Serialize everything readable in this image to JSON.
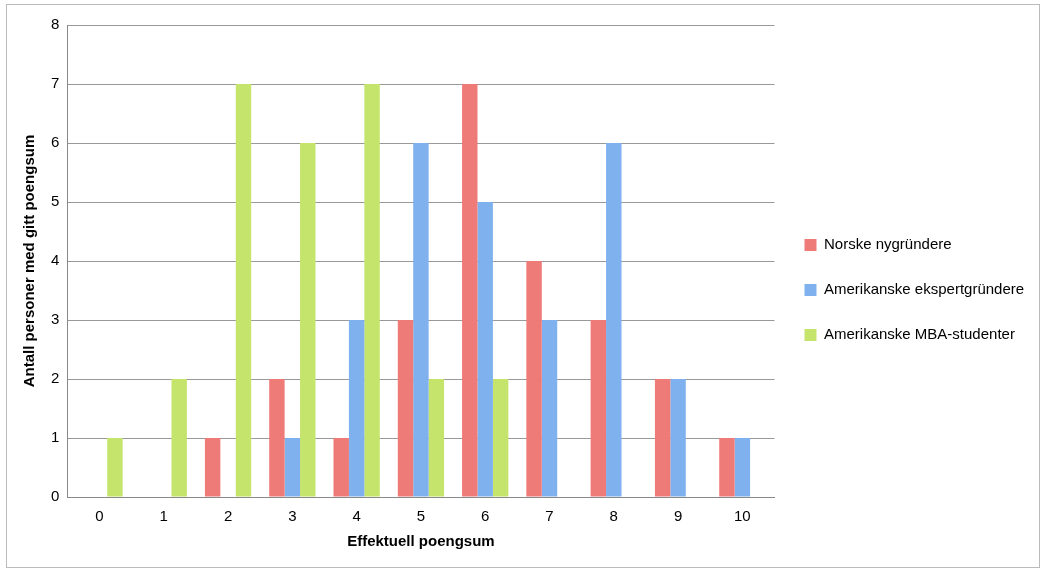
{
  "chart_data": {
    "type": "bar",
    "xlabel": "Effektuell poengsum",
    "ylabel": "Antall personer med gitt poengsum",
    "categories": [
      "0",
      "1",
      "2",
      "3",
      "4",
      "5",
      "6",
      "7",
      "8",
      "9",
      "10"
    ],
    "series": [
      {
        "name": "Norske nygründere",
        "color": "#ef7b78",
        "values": [
          0,
          0,
          1,
          2,
          1,
          3,
          7,
          4,
          3,
          2,
          1
        ]
      },
      {
        "name": "Amerikanske ekspertgründere",
        "color": "#7eb1ee",
        "values": [
          0,
          0,
          0,
          1,
          3,
          6,
          5,
          3,
          6,
          2,
          1
        ]
      },
      {
        "name": "Amerikanske MBA-studenter",
        "color": "#c5e46c",
        "values": [
          1,
          2,
          7,
          6,
          7,
          2,
          2,
          0,
          0,
          0,
          0
        ]
      }
    ],
    "ylim": [
      0,
      8
    ],
    "yticks": [
      0,
      1,
      2,
      3,
      4,
      5,
      6,
      7,
      8
    ],
    "grid": "y",
    "legend": "right"
  }
}
